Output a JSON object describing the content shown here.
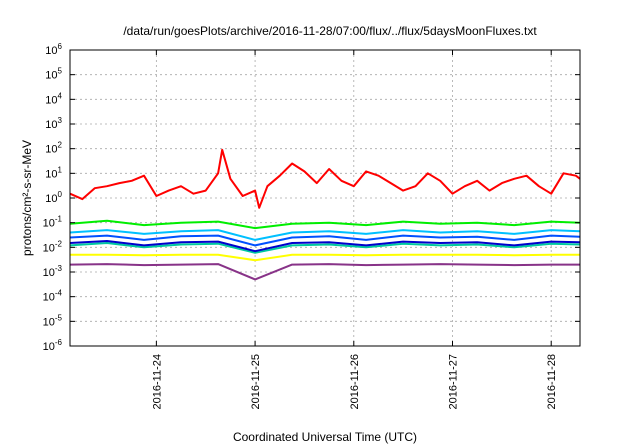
{
  "chart_data": {
    "type": "line",
    "title": "/data/run/goesPlots/archive/2016-11-28/07:00/flux/../flux/5daysMoonFluxes.txt",
    "xlabel": "Coordinated Universal Time (UTC)",
    "ylabel": "protons/cm²-s-sr-MeV",
    "y_scale": "log",
    "ylim": [
      1e-06,
      1000000.0
    ],
    "xlim": [
      "2016-11-23T03:00",
      "2016-11-28T07:00"
    ],
    "x_tick_labels": [
      "2016-11-24",
      "2016-11-25",
      "2016-11-26",
      "2016-11-27",
      "2016-11-28"
    ],
    "x_tick_values": [
      "2016-11-24T00:00",
      "2016-11-25T00:00",
      "2016-11-26T00:00",
      "2016-11-27T00:00",
      "2016-11-28T00:00"
    ],
    "y_tick_labels": [
      {
        "base": "10",
        "exp": "-6"
      },
      {
        "base": "10",
        "exp": "-5"
      },
      {
        "base": "10",
        "exp": "-4"
      },
      {
        "base": "10",
        "exp": "-3"
      },
      {
        "base": "10",
        "exp": "-2"
      },
      {
        "base": "10",
        "exp": "-1"
      },
      {
        "base": "10",
        "exp": "0"
      },
      {
        "base": "10",
        "exp": "1"
      },
      {
        "base": "10",
        "exp": "2"
      },
      {
        "base": "10",
        "exp": "3"
      },
      {
        "base": "10",
        "exp": "4"
      },
      {
        "base": "10",
        "exp": "5"
      },
      {
        "base": "10",
        "exp": "6"
      }
    ],
    "grid": true,
    "legend": "none",
    "series": [
      {
        "color": "#ff0000",
        "x": [
          "2016-11-23T03:00",
          "2016-11-23T06:00",
          "2016-11-23T09:00",
          "2016-11-23T12:00",
          "2016-11-23T15:00",
          "2016-11-23T18:00",
          "2016-11-23T21:00",
          "2016-11-24T00:00",
          "2016-11-24T03:00",
          "2016-11-24T06:00",
          "2016-11-24T09:00",
          "2016-11-24T12:00",
          "2016-11-24T15:00",
          "2016-11-24T16:00",
          "2016-11-24T18:00",
          "2016-11-24T21:00",
          "2016-11-25T00:00",
          "2016-11-25T01:00",
          "2016-11-25T03:00",
          "2016-11-25T06:00",
          "2016-11-25T09:00",
          "2016-11-25T12:00",
          "2016-11-25T15:00",
          "2016-11-25T18:00",
          "2016-11-25T21:00",
          "2016-11-26T00:00",
          "2016-11-26T03:00",
          "2016-11-26T06:00",
          "2016-11-26T09:00",
          "2016-11-26T12:00",
          "2016-11-26T15:00",
          "2016-11-26T18:00",
          "2016-11-26T21:00",
          "2016-11-27T00:00",
          "2016-11-27T03:00",
          "2016-11-27T06:00",
          "2016-11-27T09:00",
          "2016-11-27T12:00",
          "2016-11-27T15:00",
          "2016-11-27T18:00",
          "2016-11-27T21:00",
          "2016-11-28T00:00",
          "2016-11-28T03:00",
          "2016-11-28T06:00",
          "2016-11-28T07:00"
        ],
        "values": [
          1.5,
          0.9,
          2.5,
          3,
          4,
          5,
          8,
          1.2,
          2,
          3,
          1.5,
          2,
          10,
          90,
          6,
          1.2,
          2,
          0.4,
          3,
          8,
          25,
          12,
          4,
          15,
          5,
          3,
          12,
          8,
          4,
          2,
          3,
          10,
          5,
          1.5,
          3,
          5,
          2,
          4,
          6,
          8,
          3,
          1.5,
          10,
          8,
          6
        ]
      },
      {
        "color": "#00ee00",
        "x": [
          "2016-11-23T03:00",
          "2016-11-23T12:00",
          "2016-11-23T21:00",
          "2016-11-24T06:00",
          "2016-11-24T15:00",
          "2016-11-25T00:00",
          "2016-11-25T09:00",
          "2016-11-25T18:00",
          "2016-11-26T03:00",
          "2016-11-26T12:00",
          "2016-11-26T21:00",
          "2016-11-27T06:00",
          "2016-11-27T15:00",
          "2016-11-28T00:00",
          "2016-11-28T07:00"
        ],
        "values": [
          0.09,
          0.12,
          0.08,
          0.1,
          0.11,
          0.06,
          0.09,
          0.1,
          0.08,
          0.11,
          0.09,
          0.1,
          0.08,
          0.11,
          0.1
        ]
      },
      {
        "color": "#00c0ff",
        "x": [
          "2016-11-23T03:00",
          "2016-11-23T12:00",
          "2016-11-23T21:00",
          "2016-11-24T06:00",
          "2016-11-24T15:00",
          "2016-11-25T00:00",
          "2016-11-25T09:00",
          "2016-11-25T18:00",
          "2016-11-26T03:00",
          "2016-11-26T12:00",
          "2016-11-26T21:00",
          "2016-11-27T06:00",
          "2016-11-27T15:00",
          "2016-11-28T00:00",
          "2016-11-28T07:00"
        ],
        "values": [
          0.04,
          0.05,
          0.035,
          0.045,
          0.05,
          0.02,
          0.04,
          0.045,
          0.035,
          0.05,
          0.04,
          0.045,
          0.035,
          0.05,
          0.045
        ]
      },
      {
        "color": "#0050ff",
        "x": [
          "2016-11-23T03:00",
          "2016-11-23T12:00",
          "2016-11-23T21:00",
          "2016-11-24T06:00",
          "2016-11-24T15:00",
          "2016-11-25T00:00",
          "2016-11-25T09:00",
          "2016-11-25T18:00",
          "2016-11-26T03:00",
          "2016-11-26T12:00",
          "2016-11-26T21:00",
          "2016-11-27T06:00",
          "2016-11-27T15:00",
          "2016-11-28T00:00",
          "2016-11-28T07:00"
        ],
        "values": [
          0.025,
          0.03,
          0.02,
          0.028,
          0.03,
          0.012,
          0.025,
          0.028,
          0.02,
          0.03,
          0.025,
          0.027,
          0.02,
          0.03,
          0.027
        ]
      },
      {
        "color": "#00c8a0",
        "x": [
          "2016-11-23T03:00",
          "2016-11-23T12:00",
          "2016-11-23T21:00",
          "2016-11-24T06:00",
          "2016-11-24T15:00",
          "2016-11-25T00:00",
          "2016-11-25T09:00",
          "2016-11-25T18:00",
          "2016-11-26T03:00",
          "2016-11-26T12:00",
          "2016-11-26T21:00",
          "2016-11-27T06:00",
          "2016-11-27T15:00",
          "2016-11-28T00:00",
          "2016-11-28T07:00"
        ],
        "values": [
          0.012,
          0.015,
          0.01,
          0.013,
          0.014,
          0.006,
          0.012,
          0.013,
          0.01,
          0.014,
          0.012,
          0.013,
          0.01,
          0.014,
          0.013
        ]
      },
      {
        "color": "#0000cc",
        "x": [
          "2016-11-23T03:00",
          "2016-11-23T12:00",
          "2016-11-23T21:00",
          "2016-11-24T06:00",
          "2016-11-24T15:00",
          "2016-11-25T00:00",
          "2016-11-25T09:00",
          "2016-11-25T18:00",
          "2016-11-26T03:00",
          "2016-11-26T12:00",
          "2016-11-26T21:00",
          "2016-11-27T06:00",
          "2016-11-27T15:00",
          "2016-11-28T00:00",
          "2016-11-28T07:00"
        ],
        "values": [
          0.015,
          0.018,
          0.012,
          0.016,
          0.017,
          0.007,
          0.015,
          0.016,
          0.012,
          0.017,
          0.015,
          0.016,
          0.012,
          0.017,
          0.016
        ]
      },
      {
        "color": "#ffff00",
        "x": [
          "2016-11-23T03:00",
          "2016-11-23T12:00",
          "2016-11-23T21:00",
          "2016-11-24T06:00",
          "2016-11-24T15:00",
          "2016-11-25T00:00",
          "2016-11-25T09:00",
          "2016-11-25T18:00",
          "2016-11-26T03:00",
          "2016-11-26T12:00",
          "2016-11-26T21:00",
          "2016-11-27T06:00",
          "2016-11-27T15:00",
          "2016-11-28T00:00",
          "2016-11-28T07:00"
        ],
        "values": [
          0.005,
          0.005,
          0.0048,
          0.005,
          0.005,
          0.003,
          0.005,
          0.005,
          0.0048,
          0.005,
          0.005,
          0.005,
          0.0048,
          0.005,
          0.005
        ]
      },
      {
        "color": "#883388",
        "x": [
          "2016-11-23T03:00",
          "2016-11-23T12:00",
          "2016-11-23T21:00",
          "2016-11-24T06:00",
          "2016-11-24T15:00",
          "2016-11-25T00:00",
          "2016-11-25T09:00",
          "2016-11-25T18:00",
          "2016-11-26T03:00",
          "2016-11-26T12:00",
          "2016-11-26T21:00",
          "2016-11-27T06:00",
          "2016-11-27T15:00",
          "2016-11-28T00:00",
          "2016-11-28T07:00"
        ],
        "values": [
          0.002,
          0.0021,
          0.0019,
          0.002,
          0.0021,
          0.0005,
          0.002,
          0.0021,
          0.0019,
          0.002,
          0.0021,
          0.002,
          0.0019,
          0.002,
          0.002
        ]
      }
    ]
  }
}
